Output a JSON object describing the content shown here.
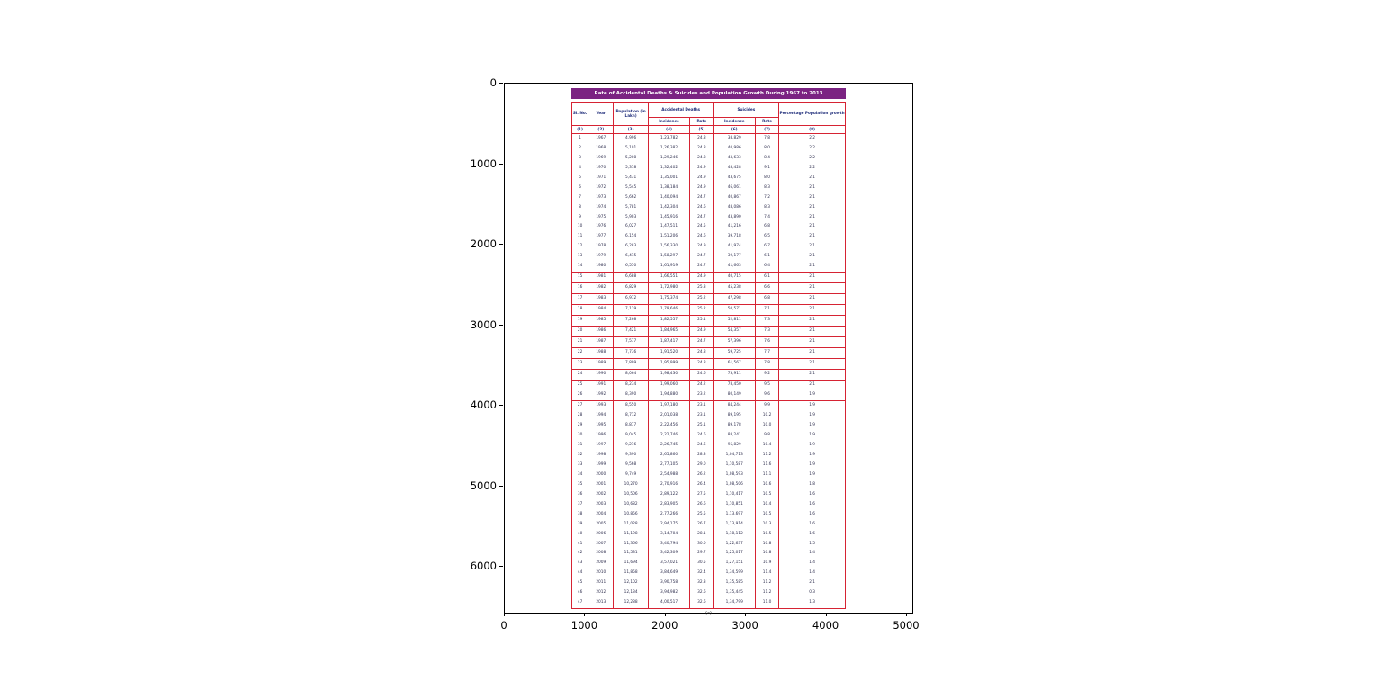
{
  "figure": {
    "xticks": [
      "0",
      "1000",
      "2000",
      "3000",
      "4000",
      "5000"
    ],
    "yticks": [
      "0",
      "1000",
      "2000",
      "3000",
      "4000",
      "5000",
      "6000"
    ]
  },
  "table_image": {
    "title": "Rate of Accidental Deaths & Suicides and Population Growth During 1967 to 2013",
    "caption": "(a)",
    "colors": {
      "title_bg": "#7B2382",
      "border": "#D62333",
      "header_text": "#1F2D7A",
      "cell_text": "#2F2F4F"
    },
    "header": {
      "sl": "Sl. No.",
      "year": "Year",
      "population": "Population (in Lakh)",
      "accidental": "Accidental Deaths",
      "suicides": "Suicides",
      "growth": "Percentage Population growth",
      "incidence": "Incidence",
      "rate": "Rate"
    },
    "column_numbers": [
      "(1)",
      "(2)",
      "(3)",
      "(4)",
      "(5)",
      "(6)",
      "(7)",
      "(8)"
    ],
    "boxed_sl": [
      15,
      16,
      17,
      18,
      19,
      20,
      21,
      22,
      23,
      24,
      25,
      26
    ]
  },
  "chart_data": {
    "type": "table",
    "title": "Rate of Accidental Deaths & Suicides and Population Growth During 1967 to 2013",
    "columns": [
      "Sl. No.",
      "Year",
      "Population (in Lakh)",
      "Accidental Deaths - Incidence",
      "Accidental Deaths - Rate",
      "Suicides - Incidence",
      "Suicides - Rate",
      "Percentage Population growth"
    ],
    "rows": [
      [
        "1",
        "1967",
        "4,996",
        "1,23,782",
        "24.8",
        "38,829",
        "7.8",
        "2.2"
      ],
      [
        "2",
        "1968",
        "5,101",
        "1,26,382",
        "24.8",
        "40,986",
        "8.0",
        "2.2"
      ],
      [
        "3",
        "1969",
        "5,208",
        "1,29,246",
        "24.8",
        "43,633",
        "8.4",
        "2.2"
      ],
      [
        "4",
        "1970",
        "5,318",
        "1,32,402",
        "24.9",
        "48,428",
        "9.1",
        "2.2"
      ],
      [
        "5",
        "1971",
        "5,431",
        "1,35,001",
        "24.9",
        "43,675",
        "8.0",
        "2.1"
      ],
      [
        "6",
        "1972",
        "5,545",
        "1,38,184",
        "24.9",
        "46,061",
        "8.3",
        "2.1"
      ],
      [
        "7",
        "1973",
        "5,662",
        "1,40,094",
        "24.7",
        "40,867",
        "7.2",
        "2.1"
      ],
      [
        "8",
        "1974",
        "5,781",
        "1,42,304",
        "24.6",
        "48,086",
        "8.3",
        "2.1"
      ],
      [
        "9",
        "1975",
        "5,903",
        "1,45,916",
        "24.7",
        "43,890",
        "7.4",
        "2.1"
      ],
      [
        "10",
        "1976",
        "6,027",
        "1,47,511",
        "24.5",
        "41,216",
        "6.8",
        "2.1"
      ],
      [
        "11",
        "1977",
        "6,154",
        "1,51,206",
        "24.6",
        "39,718",
        "6.5",
        "2.1"
      ],
      [
        "12",
        "1978",
        "6,283",
        "1,56,330",
        "24.9",
        "41,974",
        "6.7",
        "2.1"
      ],
      [
        "13",
        "1979",
        "6,415",
        "1,58,297",
        "24.7",
        "39,177",
        "6.1",
        "2.1"
      ],
      [
        "14",
        "1980",
        "6,550",
        "1,61,919",
        "24.7",
        "41,663",
        "6.4",
        "2.1"
      ],
      [
        "15",
        "1981",
        "6,688",
        "1,66,551",
        "24.9",
        "40,715",
        "6.1",
        "2.1"
      ],
      [
        "16",
        "1982",
        "6,829",
        "1,72,980",
        "25.3",
        "45,238",
        "6.6",
        "2.1"
      ],
      [
        "17",
        "1983",
        "6,972",
        "1,75,374",
        "25.2",
        "47,298",
        "6.8",
        "2.1"
      ],
      [
        "18",
        "1984",
        "7,119",
        "1,79,646",
        "25.2",
        "50,571",
        "7.1",
        "2.1"
      ],
      [
        "19",
        "1985",
        "7,268",
        "1,82,557",
        "25.1",
        "52,811",
        "7.3",
        "2.1"
      ],
      [
        "20",
        "1986",
        "7,421",
        "1,84,965",
        "24.9",
        "54,357",
        "7.3",
        "2.1"
      ],
      [
        "21",
        "1987",
        "7,577",
        "1,87,417",
        "24.7",
        "57,396",
        "7.6",
        "2.1"
      ],
      [
        "22",
        "1988",
        "7,736",
        "1,91,520",
        "24.8",
        "59,725",
        "7.7",
        "2.1"
      ],
      [
        "23",
        "1989",
        "7,899",
        "1,95,999",
        "24.8",
        "61,567",
        "7.8",
        "2.1"
      ],
      [
        "24",
        "1990",
        "8,064",
        "1,98,430",
        "24.6",
        "73,911",
        "9.2",
        "2.1"
      ],
      [
        "25",
        "1991",
        "8,234",
        "1,99,060",
        "24.2",
        "78,450",
        "9.5",
        "2.1"
      ],
      [
        "26",
        "1992",
        "8,390",
        "1,94,880",
        "23.2",
        "80,149",
        "9.6",
        "1.9"
      ],
      [
        "27",
        "1993",
        "8,550",
        "1,97,180",
        "23.1",
        "84,244",
        "9.9",
        "1.9"
      ],
      [
        "28",
        "1994",
        "8,712",
        "2,01,038",
        "23.1",
        "89,195",
        "10.2",
        "1.9"
      ],
      [
        "29",
        "1995",
        "8,877",
        "2,22,456",
        "25.1",
        "89,178",
        "10.0",
        "1.9"
      ],
      [
        "30",
        "1996",
        "9,045",
        "2,22,746",
        "24.6",
        "88,241",
        "9.8",
        "1.9"
      ],
      [
        "31",
        "1997",
        "9,216",
        "2,26,745",
        "24.6",
        "95,829",
        "10.4",
        "1.9"
      ],
      [
        "32",
        "1998",
        "9,390",
        "2,65,860",
        "28.3",
        "1,04,713",
        "11.2",
        "1.9"
      ],
      [
        "33",
        "1999",
        "9,568",
        "2,77,105",
        "29.0",
        "1,10,587",
        "11.6",
        "1.9"
      ],
      [
        "34",
        "2000",
        "9,749",
        "2,54,988",
        "26.2",
        "1,08,593",
        "11.1",
        "1.9"
      ],
      [
        "35",
        "2001",
        "10,270",
        "2,70,916",
        "26.4",
        "1,08,506",
        "10.6",
        "1.8"
      ],
      [
        "36",
        "2002",
        "10,506",
        "2,89,122",
        "27.5",
        "1,10,417",
        "10.5",
        "1.6"
      ],
      [
        "37",
        "2003",
        "10,682",
        "2,83,905",
        "26.6",
        "1,10,851",
        "10.4",
        "1.6"
      ],
      [
        "38",
        "2004",
        "10,856",
        "2,77,266",
        "25.5",
        "1,13,697",
        "10.5",
        "1.6"
      ],
      [
        "39",
        "2005",
        "11,028",
        "2,94,175",
        "26.7",
        "1,13,914",
        "10.3",
        "1.6"
      ],
      [
        "40",
        "2006",
        "11,198",
        "3,14,704",
        "28.1",
        "1,18,112",
        "10.5",
        "1.6"
      ],
      [
        "41",
        "2007",
        "11,366",
        "3,40,794",
        "30.0",
        "1,22,637",
        "10.8",
        "1.5"
      ],
      [
        "42",
        "2008",
        "11,531",
        "3,42,309",
        "29.7",
        "1,25,017",
        "10.8",
        "1.4"
      ],
      [
        "43",
        "2009",
        "11,694",
        "3,57,021",
        "30.5",
        "1,27,151",
        "10.9",
        "1.4"
      ],
      [
        "44",
        "2010",
        "11,858",
        "3,84,649",
        "32.4",
        "1,34,599",
        "11.4",
        "1.4"
      ],
      [
        "45",
        "2011",
        "12,102",
        "3,90,758",
        "32.3",
        "1,35,585",
        "11.2",
        "2.1"
      ],
      [
        "46",
        "2012",
        "12,134",
        "3,94,982",
        "32.6",
        "1,35,445",
        "11.2",
        "0.3"
      ],
      [
        "47",
        "2013",
        "12,288",
        "4,00,517",
        "32.6",
        "1,34,799",
        "11.0",
        "1.3"
      ]
    ]
  }
}
